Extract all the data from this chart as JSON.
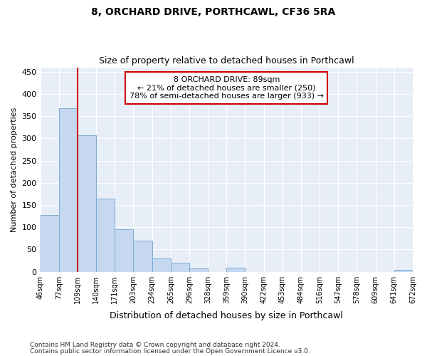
{
  "title1": "8, ORCHARD DRIVE, PORTHCAWL, CF36 5RA",
  "title2": "Size of property relative to detached houses in Porthcawl",
  "xlabel": "Distribution of detached houses by size in Porthcawl",
  "ylabel": "Number of detached properties",
  "bar_values": [
    127,
    368,
    307,
    165,
    95,
    70,
    30,
    20,
    8,
    0,
    9,
    0,
    0,
    0,
    0,
    0,
    0,
    0,
    0,
    4
  ],
  "bar_labels": [
    "46sqm",
    "77sqm",
    "109sqm",
    "140sqm",
    "171sqm",
    "203sqm",
    "234sqm",
    "265sqm",
    "296sqm",
    "328sqm",
    "359sqm",
    "390sqm",
    "422sqm",
    "453sqm",
    "484sqm",
    "516sqm",
    "547sqm",
    "578sqm",
    "609sqm",
    "641sqm",
    "672sqm"
  ],
  "bar_color": "#c5d8f0",
  "bar_edge_color": "#7aadd4",
  "red_line_x": 2,
  "marker_line_color": "#cc0000",
  "annotation_line1": "8 ORCHARD DRIVE: 89sqm",
  "annotation_line2": "← 21% of detached houses are smaller (250)",
  "annotation_line3": "78% of semi-detached houses are larger (933) →",
  "annotation_box_color": "#ffffff",
  "annotation_box_edge": "#cc0000",
  "ylim": [
    0,
    460
  ],
  "yticks": [
    0,
    50,
    100,
    150,
    200,
    250,
    300,
    350,
    400,
    450
  ],
  "footer1": "Contains HM Land Registry data © Crown copyright and database right 2024.",
  "footer2": "Contains public sector information licensed under the Open Government Licence v3.0.",
  "bg_color": "#ffffff",
  "plot_bg_color": "#e8eef8"
}
